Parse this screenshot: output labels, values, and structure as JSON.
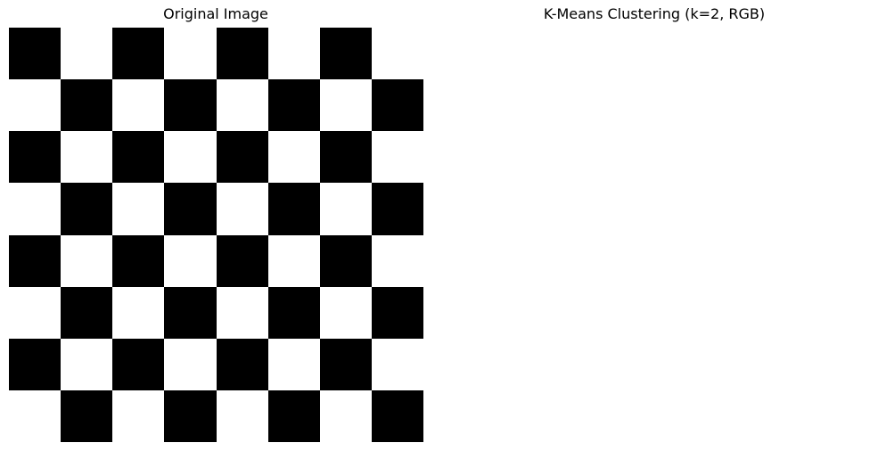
{
  "panels": {
    "left": {
      "title": "Original Image"
    },
    "right": {
      "title": "K-Means Clustering (k=2, RGB)"
    }
  },
  "checkerboard": {
    "grid_size": 8,
    "dark_color": "#000000",
    "light_color": "#ffffff",
    "top_left_cell": "dark"
  },
  "result_panel": {
    "fill_color": "#ffffff"
  }
}
